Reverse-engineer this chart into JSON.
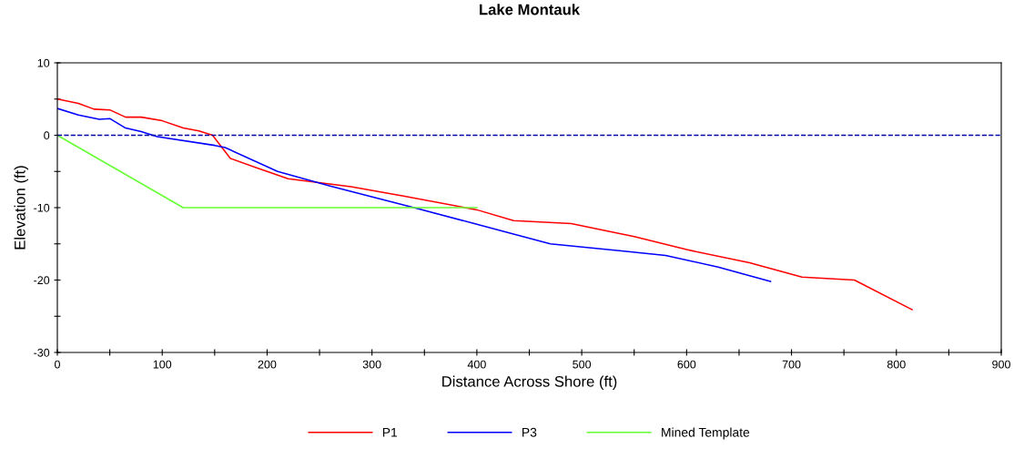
{
  "chart_data": {
    "type": "line",
    "title": "Lake Montauk",
    "xlabel": "Distance Across Shore (ft)",
    "ylabel": "Elevation (ft)",
    "xlim": [
      0,
      900
    ],
    "ylim": [
      -30,
      10
    ],
    "xticks": [
      0,
      {
        "value": 50,
        "label": null
      },
      100,
      {
        "value": 150,
        "label": null
      },
      200,
      {
        "value": 250,
        "label": null
      },
      300,
      {
        "value": 350,
        "label": null
      },
      400,
      {
        "value": 450,
        "label": null
      },
      500,
      {
        "value": 550,
        "label": null
      },
      600,
      {
        "value": 650,
        "label": null
      },
      700,
      {
        "value": 750,
        "label": null
      },
      800,
      {
        "value": 850,
        "label": null
      },
      900
    ],
    "yticks": [
      -30,
      {
        "value": -25,
        "label": null
      },
      -20,
      {
        "value": -15,
        "label": null
      },
      -10,
      {
        "value": -5,
        "label": null
      },
      0,
      {
        "value": 5,
        "label": null
      },
      10
    ],
    "grid": false,
    "legend": "bottom",
    "line_style": "solid",
    "marker": "none",
    "ref_lines": [
      {
        "axis": "y",
        "value": 0,
        "color": "#0000aa",
        "line_style": "dashed"
      }
    ],
    "series": [
      {
        "name": "P1",
        "color": "#ff0000",
        "x": [
          0,
          20,
          35,
          50,
          65,
          80,
          100,
          120,
          135,
          148,
          165,
          190,
          220,
          280,
          330,
          400,
          435,
          490,
          550,
          600,
          660,
          710,
          760,
          815
        ],
        "values": [
          5,
          4.4,
          3.6,
          3.5,
          2.5,
          2.5,
          2,
          1,
          0.6,
          0,
          -3.2,
          -4.5,
          -6,
          -7.1,
          -8.4,
          -10.3,
          -11.8,
          -12.2,
          -14,
          -15.8,
          -17.6,
          -19.6,
          -20,
          -24.1
        ]
      },
      {
        "name": "P3",
        "color": "#0000ff",
        "x": [
          0,
          20,
          40,
          50,
          65,
          80,
          95,
          150,
          160,
          210,
          260,
          340,
          400,
          470,
          540,
          580,
          630,
          680
        ],
        "values": [
          3.7,
          2.8,
          2.2,
          2.3,
          1,
          0.5,
          -0.2,
          -1.4,
          -1.7,
          -5,
          -7,
          -10,
          -12.3,
          -15,
          -16,
          -16.6,
          -18.2,
          -20.2
        ]
      },
      {
        "name": "Mined Template",
        "color": "#66ff33",
        "x": [
          0,
          120,
          400
        ],
        "values": [
          0,
          -10,
          -10
        ]
      }
    ]
  }
}
